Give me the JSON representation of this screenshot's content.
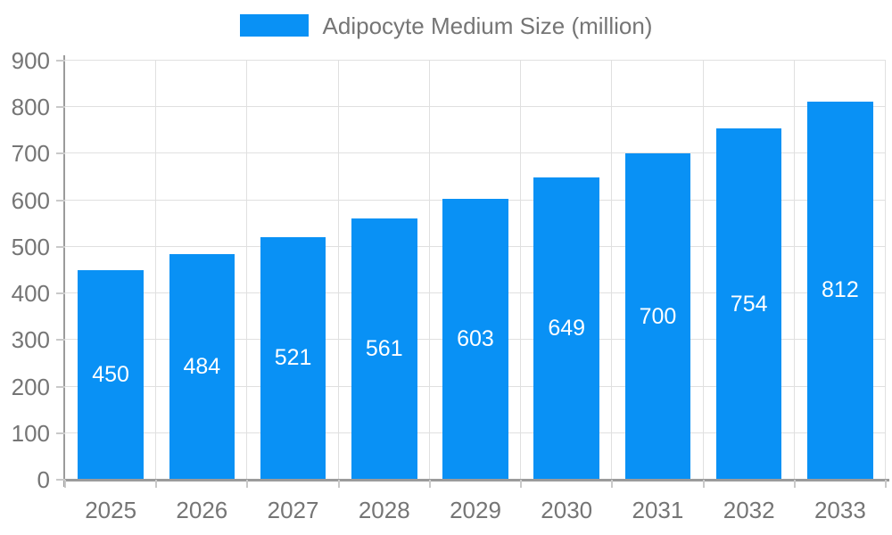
{
  "chart_data": {
    "type": "bar",
    "title": "",
    "legend": "Adipocyte Medium Size (million)",
    "legend_position": "top-center",
    "categories": [
      "2025",
      "2026",
      "2027",
      "2028",
      "2029",
      "2030",
      "2031",
      "2032",
      "2033"
    ],
    "values": [
      450,
      484,
      521,
      561,
      603,
      649,
      700,
      754,
      812
    ],
    "xlabel": "",
    "ylabel": "",
    "ylim": [
      0,
      900
    ],
    "yticks": [
      0,
      100,
      200,
      300,
      400,
      500,
      600,
      700,
      800,
      900
    ],
    "grid": "horizontal-and-vertical",
    "value_labels": "inside-bar-centered",
    "colors": {
      "bar": "#0991F5",
      "value_label": "#FFFFFF",
      "axis_label": "#757575",
      "legend_label": "#757575",
      "grid_line": "#E0E0E0",
      "axis_line": "#9B9B9B",
      "tick_mark": "#C9C9C9",
      "background": "#FFFFFF"
    }
  }
}
